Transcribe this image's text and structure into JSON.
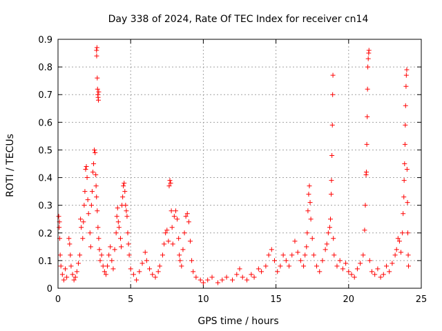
{
  "chart_data": {
    "type": "scatter",
    "title": "Day 338 of 2024, Rate Of TEC Index for receiver cn14",
    "xlabel": "GPS time / hours",
    "ylabel": "ROTI / TECUs",
    "xlim": [
      0,
      25
    ],
    "ylim": [
      0,
      0.9
    ],
    "xticks": [
      0,
      5,
      10,
      15,
      20,
      25
    ],
    "yticks": [
      0,
      0.1,
      0.2,
      0.3,
      0.4,
      0.5,
      0.6,
      0.7,
      0.8,
      0.9
    ],
    "grid": true,
    "marker": "plus",
    "color": "#ff0000",
    "series": [
      {
        "name": "ROTI",
        "points": [
          [
            0.05,
            0.26
          ],
          [
            0.08,
            0.22
          ],
          [
            0.1,
            0.24
          ],
          [
            0.12,
            0.18
          ],
          [
            0.15,
            0.12
          ],
          [
            0.2,
            0.08
          ],
          [
            0.3,
            0.05
          ],
          [
            0.4,
            0.03
          ],
          [
            0.5,
            0.07
          ],
          [
            0.6,
            0.04
          ],
          [
            0.75,
            0.18
          ],
          [
            0.8,
            0.16
          ],
          [
            0.85,
            0.12
          ],
          [
            0.9,
            0.08
          ],
          [
            1.0,
            0.05
          ],
          [
            1.1,
            0.03
          ],
          [
            1.2,
            0.04
          ],
          [
            1.3,
            0.06
          ],
          [
            1.4,
            0.09
          ],
          [
            1.5,
            0.12
          ],
          [
            1.55,
            0.25
          ],
          [
            1.6,
            0.22
          ],
          [
            1.7,
            0.18
          ],
          [
            1.75,
            0.24
          ],
          [
            1.8,
            0.3
          ],
          [
            1.85,
            0.35
          ],
          [
            1.9,
            0.43
          ],
          [
            1.95,
            0.44
          ],
          [
            2.0,
            0.4
          ],
          [
            2.05,
            0.32
          ],
          [
            2.1,
            0.27
          ],
          [
            2.2,
            0.2
          ],
          [
            2.25,
            0.15
          ],
          [
            2.3,
            0.3
          ],
          [
            2.35,
            0.35
          ],
          [
            2.4,
            0.42
          ],
          [
            2.45,
            0.45
          ],
          [
            2.5,
            0.5
          ],
          [
            2.55,
            0.49
          ],
          [
            2.6,
            0.41
          ],
          [
            2.62,
            0.37
          ],
          [
            2.65,
            0.86
          ],
          [
            2.66,
            0.84
          ],
          [
            2.68,
            0.87
          ],
          [
            2.7,
            0.76
          ],
          [
            2.72,
            0.72
          ],
          [
            2.74,
            0.7
          ],
          [
            2.76,
            0.69
          ],
          [
            2.78,
            0.68
          ],
          [
            2.8,
            0.71
          ],
          [
            2.65,
            0.33
          ],
          [
            2.7,
            0.28
          ],
          [
            2.75,
            0.22
          ],
          [
            2.8,
            0.18
          ],
          [
            2.85,
            0.14
          ],
          [
            2.9,
            0.1
          ],
          [
            3.0,
            0.12
          ],
          [
            3.1,
            0.08
          ],
          [
            3.2,
            0.06
          ],
          [
            3.3,
            0.05
          ],
          [
            3.4,
            0.08
          ],
          [
            3.5,
            0.12
          ],
          [
            3.6,
            0.15
          ],
          [
            3.7,
            0.1
          ],
          [
            3.8,
            0.07
          ],
          [
            3.9,
            0.14
          ],
          [
            4.0,
            0.2
          ],
          [
            4.05,
            0.26
          ],
          [
            4.1,
            0.29
          ],
          [
            4.15,
            0.24
          ],
          [
            4.2,
            0.22
          ],
          [
            4.3,
            0.18
          ],
          [
            4.35,
            0.15
          ],
          [
            4.4,
            0.3
          ],
          [
            4.45,
            0.33
          ],
          [
            4.5,
            0.37
          ],
          [
            4.55,
            0.38
          ],
          [
            4.6,
            0.35
          ],
          [
            4.65,
            0.3
          ],
          [
            4.7,
            0.28
          ],
          [
            4.75,
            0.26
          ],
          [
            4.8,
            0.2
          ],
          [
            4.85,
            0.16
          ],
          [
            4.9,
            0.12
          ],
          [
            5.0,
            0.07
          ],
          [
            5.2,
            0.05
          ],
          [
            5.4,
            0.03
          ],
          [
            5.6,
            0.06
          ],
          [
            5.8,
            0.09
          ],
          [
            6.0,
            0.13
          ],
          [
            6.1,
            0.1
          ],
          [
            6.3,
            0.07
          ],
          [
            6.5,
            0.05
          ],
          [
            6.7,
            0.04
          ],
          [
            6.9,
            0.06
          ],
          [
            7.0,
            0.08
          ],
          [
            7.2,
            0.12
          ],
          [
            7.3,
            0.16
          ],
          [
            7.4,
            0.2
          ],
          [
            7.5,
            0.21
          ],
          [
            7.6,
            0.17
          ],
          [
            7.65,
            0.37
          ],
          [
            7.7,
            0.39
          ],
          [
            7.75,
            0.38
          ],
          [
            7.8,
            0.28
          ],
          [
            7.85,
            0.22
          ],
          [
            7.9,
            0.16
          ],
          [
            8.0,
            0.26
          ],
          [
            8.1,
            0.28
          ],
          [
            8.2,
            0.25
          ],
          [
            8.3,
            0.18
          ],
          [
            8.35,
            0.12
          ],
          [
            8.4,
            0.1
          ],
          [
            8.5,
            0.08
          ],
          [
            8.6,
            0.14
          ],
          [
            8.7,
            0.2
          ],
          [
            8.8,
            0.26
          ],
          [
            8.9,
            0.27
          ],
          [
            9.0,
            0.24
          ],
          [
            9.1,
            0.17
          ],
          [
            9.2,
            0.1
          ],
          [
            9.3,
            0.06
          ],
          [
            9.5,
            0.04
          ],
          [
            9.8,
            0.03
          ],
          [
            10.0,
            0.02
          ],
          [
            10.3,
            0.03
          ],
          [
            10.6,
            0.04
          ],
          [
            11.0,
            0.02
          ],
          [
            11.3,
            0.03
          ],
          [
            11.6,
            0.04
          ],
          [
            12.0,
            0.03
          ],
          [
            12.3,
            0.05
          ],
          [
            12.5,
            0.07
          ],
          [
            12.7,
            0.04
          ],
          [
            13.0,
            0.03
          ],
          [
            13.3,
            0.05
          ],
          [
            13.5,
            0.04
          ],
          [
            13.8,
            0.07
          ],
          [
            14.0,
            0.06
          ],
          [
            14.3,
            0.08
          ],
          [
            14.5,
            0.12
          ],
          [
            14.7,
            0.14
          ],
          [
            14.9,
            0.1
          ],
          [
            15.1,
            0.06
          ],
          [
            15.3,
            0.08
          ],
          [
            15.5,
            0.12
          ],
          [
            15.7,
            0.1
          ],
          [
            15.9,
            0.08
          ],
          [
            16.1,
            0.12
          ],
          [
            16.3,
            0.17
          ],
          [
            16.5,
            0.13
          ],
          [
            16.7,
            0.1
          ],
          [
            16.9,
            0.08
          ],
          [
            17.0,
            0.12
          ],
          [
            17.1,
            0.15
          ],
          [
            17.15,
            0.2
          ],
          [
            17.2,
            0.28
          ],
          [
            17.25,
            0.34
          ],
          [
            17.3,
            0.37
          ],
          [
            17.35,
            0.31
          ],
          [
            17.4,
            0.25
          ],
          [
            17.5,
            0.18
          ],
          [
            17.6,
            0.12
          ],
          [
            17.8,
            0.08
          ],
          [
            18.0,
            0.06
          ],
          [
            18.2,
            0.1
          ],
          [
            18.4,
            0.14
          ],
          [
            18.5,
            0.16
          ],
          [
            18.6,
            0.2
          ],
          [
            18.7,
            0.22
          ],
          [
            18.75,
            0.25
          ],
          [
            18.8,
            0.34
          ],
          [
            18.82,
            0.39
          ],
          [
            18.85,
            0.48
          ],
          [
            18.88,
            0.59
          ],
          [
            18.9,
            0.7
          ],
          [
            18.92,
            0.77
          ],
          [
            18.95,
            0.18
          ],
          [
            19.0,
            0.12
          ],
          [
            19.2,
            0.08
          ],
          [
            19.4,
            0.1
          ],
          [
            19.6,
            0.07
          ],
          [
            19.8,
            0.09
          ],
          [
            20.0,
            0.06
          ],
          [
            20.2,
            0.05
          ],
          [
            20.4,
            0.04
          ],
          [
            20.6,
            0.07
          ],
          [
            20.8,
            0.09
          ],
          [
            21.0,
            0.12
          ],
          [
            21.1,
            0.21
          ],
          [
            21.15,
            0.3
          ],
          [
            21.2,
            0.41
          ],
          [
            21.22,
            0.42
          ],
          [
            21.25,
            0.52
          ],
          [
            21.28,
            0.62
          ],
          [
            21.3,
            0.72
          ],
          [
            21.32,
            0.8
          ],
          [
            21.35,
            0.83
          ],
          [
            21.38,
            0.85
          ],
          [
            21.4,
            0.86
          ],
          [
            21.45,
            0.1
          ],
          [
            21.6,
            0.06
          ],
          [
            21.8,
            0.05
          ],
          [
            22.0,
            0.07
          ],
          [
            22.2,
            0.04
          ],
          [
            22.4,
            0.05
          ],
          [
            22.6,
            0.08
          ],
          [
            22.8,
            0.06
          ],
          [
            23.0,
            0.09
          ],
          [
            23.2,
            0.12
          ],
          [
            23.3,
            0.14
          ],
          [
            23.4,
            0.18
          ],
          [
            23.5,
            0.17
          ],
          [
            23.6,
            0.13
          ],
          [
            23.7,
            0.2
          ],
          [
            23.75,
            0.27
          ],
          [
            23.8,
            0.33
          ],
          [
            23.82,
            0.39
          ],
          [
            23.85,
            0.45
          ],
          [
            23.88,
            0.52
          ],
          [
            23.9,
            0.59
          ],
          [
            23.92,
            0.66
          ],
          [
            23.95,
            0.73
          ],
          [
            23.97,
            0.77
          ],
          [
            24.0,
            0.79
          ],
          [
            24.02,
            0.43
          ],
          [
            24.05,
            0.31
          ],
          [
            24.07,
            0.2
          ],
          [
            24.1,
            0.12
          ],
          [
            24.12,
            0.08
          ]
        ]
      }
    ]
  }
}
